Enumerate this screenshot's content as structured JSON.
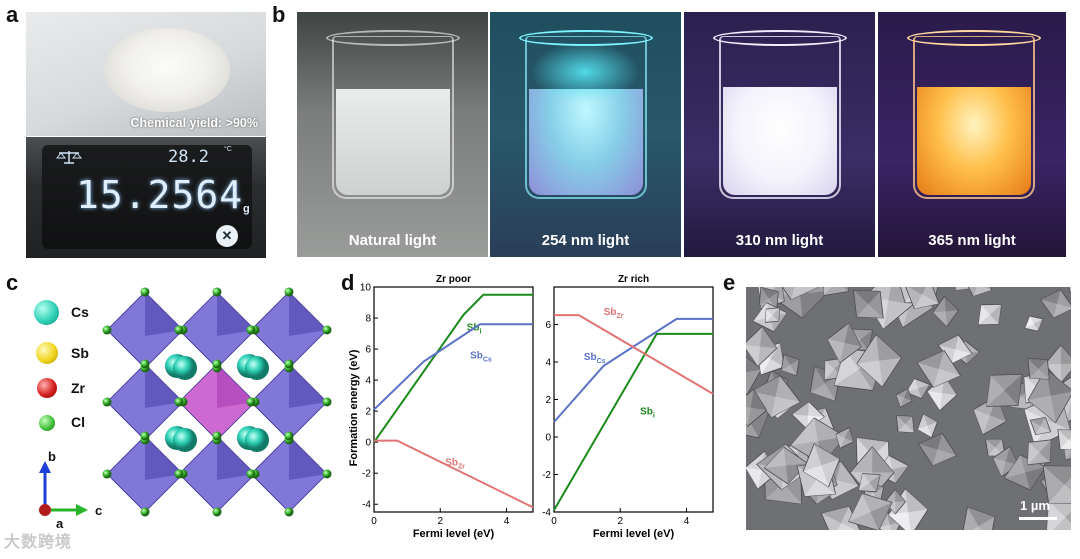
{
  "panel_labels": {
    "a": "a",
    "b": "b",
    "c": "c",
    "d": "d",
    "e": "e"
  },
  "panel_a": {
    "yield_text": "Chemical yield: >90%",
    "temperature": "28.2",
    "temperature_unit": "°C",
    "mass": "15.2564",
    "mass_unit": "g",
    "icons": [
      "balance-icon",
      "brand-logo"
    ]
  },
  "panel_b": {
    "captions": [
      "Natural light",
      "254 nm light",
      "310 nm light",
      "365 nm light"
    ],
    "colors": {
      "natural_bg": "#9a9c9a",
      "uv254_glow": "#56e8f5",
      "uv310_bg": "#2a1f4d",
      "uv365_glow": "#ffb347"
    }
  },
  "panel_c": {
    "legend": [
      {
        "element": "Cs",
        "color": "#2ed1b5"
      },
      {
        "element": "Sb",
        "color": "#f2d41a"
      },
      {
        "element": "Zr",
        "color": "#d51f1f"
      },
      {
        "element": "Cl",
        "color": "#45c23a"
      }
    ],
    "axes": {
      "b": "b",
      "c": "c",
      "a": "a"
    }
  },
  "panel_d": {
    "ylabel": "Formation energy (eV)",
    "xlabel": "Fermi level (eV)",
    "colors": {
      "Sb_i": "#1a8a1a",
      "Sb_Cs": "#5a72c8",
      "Sb_Zr": "#e27373"
    }
  },
  "chart_data": [
    {
      "type": "line",
      "title": "Zr poor",
      "xlabel": "Fermi level (eV)",
      "ylabel": "Formation energy (eV)",
      "xlim": [
        0,
        4.8
      ],
      "ylim": [
        -4.5,
        10
      ],
      "xticks": [
        0,
        2,
        4
      ],
      "yticks": [
        -4,
        -2,
        0,
        2,
        4,
        6,
        8,
        10
      ],
      "series": [
        {
          "name": "Sb_i",
          "label_main": "Sb",
          "label_sub": "i",
          "x": [
            0,
            2.7,
            3.3,
            4.8
          ],
          "y": [
            0,
            8.2,
            9.5,
            9.5
          ]
        },
        {
          "name": "Sb_Cs",
          "label_main": "Sb",
          "label_sub": "Cs",
          "x": [
            0,
            1.5,
            3.2,
            4.8
          ],
          "y": [
            2.1,
            5.2,
            7.6,
            7.6
          ]
        },
        {
          "name": "Sb_Zr",
          "label_main": "Sb",
          "label_sub": "Zr",
          "x": [
            0,
            0.7,
            4.8
          ],
          "y": [
            0.1,
            0.1,
            -4.2
          ]
        }
      ]
    },
    {
      "type": "line",
      "title": "Zr rich",
      "xlabel": "Fermi level (eV)",
      "xlim": [
        0,
        4.8
      ],
      "ylim": [
        -4,
        8
      ],
      "xticks": [
        0,
        2,
        4
      ],
      "yticks": [
        -4,
        -2,
        0,
        2,
        4,
        6
      ],
      "series": [
        {
          "name": "Sb_i",
          "label_main": "Sb",
          "label_sub": "i",
          "x": [
            0,
            3.1,
            4.8
          ],
          "y": [
            -3.9,
            5.5,
            5.5
          ]
        },
        {
          "name": "Sb_Cs",
          "label_main": "Sb",
          "label_sub": "Cs",
          "x": [
            0,
            1.5,
            3.7,
            4.8
          ],
          "y": [
            0.8,
            3.8,
            6.3,
            6.3
          ]
        },
        {
          "name": "Sb_Zr",
          "label_main": "Sb",
          "label_sub": "Zr",
          "x": [
            0,
            0.75,
            4.8
          ],
          "y": [
            6.5,
            6.5,
            2.3
          ]
        }
      ]
    }
  ],
  "panel_e": {
    "scale_label": "1 µm"
  },
  "watermark": "大数跨境"
}
